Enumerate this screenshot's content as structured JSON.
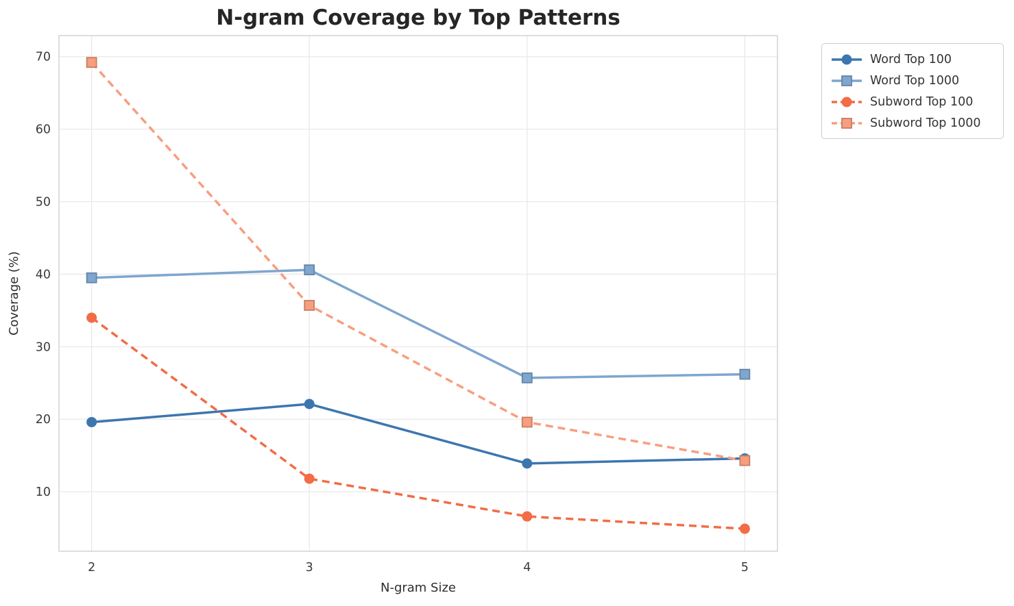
{
  "chart_data": {
    "type": "line",
    "title": "N-gram Coverage by Top Patterns",
    "xlabel": "N-gram Size",
    "ylabel": "Coverage (%)",
    "x": [
      2,
      3,
      4,
      5
    ],
    "x_tick_labels": [
      "2",
      "3",
      "4",
      "5"
    ],
    "y_ticks": [
      10,
      20,
      30,
      40,
      50,
      60,
      70
    ],
    "y_tick_labels": [
      "10",
      "20",
      "30",
      "40",
      "50",
      "60",
      "70"
    ],
    "xlim": [
      1.85,
      5.15
    ],
    "ylim": [
      1.8,
      72.9
    ],
    "grid": true,
    "legend_position": "outside upper right",
    "series": [
      {
        "name": "Word Top 100",
        "values": [
          19.6,
          22.1,
          13.9,
          14.6
        ],
        "color": "#3C76AF",
        "marker": "circle",
        "line_style": "solid"
      },
      {
        "name": "Word Top 1000",
        "values": [
          39.5,
          40.6,
          25.7,
          26.2
        ],
        "color": "#7EA6CF",
        "marker": "square",
        "line_style": "solid"
      },
      {
        "name": "Subword Top 100",
        "values": [
          34.0,
          11.8,
          6.6,
          4.9
        ],
        "color": "#F26C45",
        "marker": "circle",
        "line_style": "dashed"
      },
      {
        "name": "Subword Top 1000",
        "values": [
          69.2,
          35.7,
          19.6,
          14.3
        ],
        "color": "#F89E7E",
        "marker": "square",
        "line_style": "dashed"
      }
    ]
  },
  "colors": {
    "background": "#FFFFFF",
    "grid": "#E9E9E9",
    "spine": "#D3D3D3",
    "tick_label": "#3A3A3A",
    "axis_label": "#2E2E2E",
    "title": "#262626",
    "legend_border": "#CCCCCC",
    "legend_text": "#333333"
  }
}
